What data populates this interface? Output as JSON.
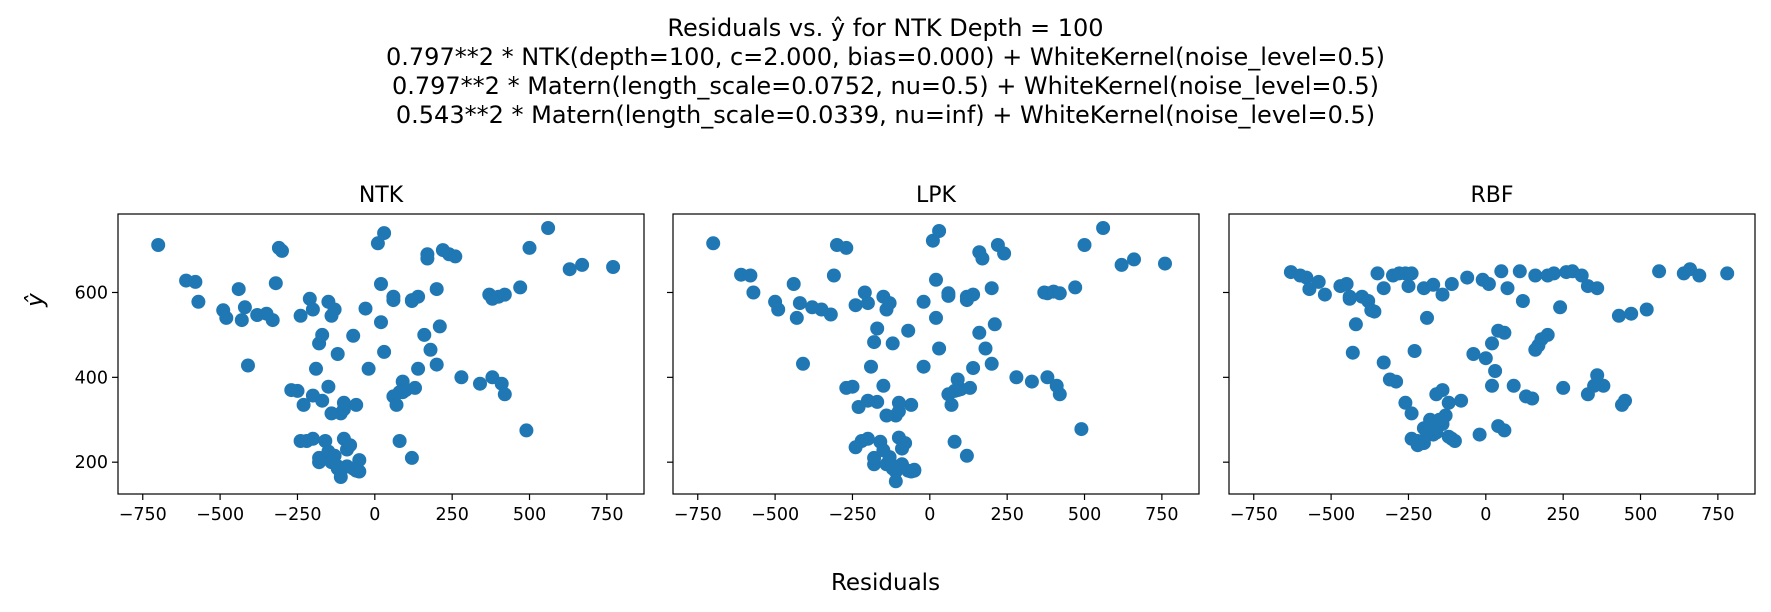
{
  "title_lines": [
    "Residuals vs. ŷ for NTK Depth = 100",
    "0.797**2 * NTK(depth=100, c=2.000, bias=0.000) + WhiteKernel(noise_level=0.5)",
    "0.797**2 * Matern(length_scale=0.0752, nu=0.5) + WhiteKernel(noise_level=0.5)",
    "0.543**2 * Matern(length_scale=0.0339, nu=inf) + WhiteKernel(noise_level=0.5)"
  ],
  "xlabel": "Residuals",
  "ylabel": "ŷ",
  "point_color": "#1f77b4",
  "chart_data": [
    {
      "type": "scatter",
      "title": "NTK",
      "xlim": [
        -830,
        870
      ],
      "ylim": [
        125,
        785
      ],
      "xticks": [
        -750,
        -500,
        -250,
        0,
        250,
        500,
        750
      ],
      "yticks": [
        200,
        400,
        600
      ],
      "x": [
        -700,
        -610,
        -580,
        -570,
        -490,
        -480,
        -440,
        -430,
        -420,
        -410,
        -380,
        -350,
        -330,
        -320,
        -310,
        -300,
        -240,
        -210,
        -200,
        -190,
        -180,
        -170,
        -150,
        -140,
        -130,
        -110,
        -100,
        10,
        30,
        60,
        220,
        240,
        260,
        170,
        200,
        120,
        60,
        20,
        -30,
        -70,
        -120,
        -150,
        -170,
        -200,
        -230,
        -250,
        -200,
        -180,
        -120,
        -110,
        -90,
        -50,
        80,
        90,
        100,
        130,
        140,
        180,
        200,
        210,
        170,
        160,
        140,
        120,
        90,
        80,
        60,
        30,
        20,
        -20,
        -60,
        -100,
        -140,
        -160,
        -180,
        -220,
        -240,
        -270,
        -150,
        -140,
        -130,
        -120,
        -110,
        -100,
        -90,
        -80,
        -70,
        -60,
        -50,
        70,
        120,
        280,
        340,
        370,
        380,
        400,
        420,
        470,
        490,
        500,
        560,
        630,
        670,
        770,
        380,
        410,
        420
      ],
      "y": [
        712,
        628,
        625,
        578,
        558,
        540,
        608,
        535,
        565,
        428,
        547,
        550,
        535,
        622,
        705,
        698,
        545,
        585,
        560,
        420,
        480,
        500,
        578,
        545,
        560,
        315,
        325,
        716,
        740,
        582,
        700,
        690,
        685,
        690,
        608,
        582,
        590,
        530,
        562,
        498,
        455,
        378,
        345,
        357,
        335,
        368,
        255,
        200,
        185,
        180,
        190,
        178,
        250,
        365,
        370,
        375,
        420,
        465,
        430,
        520,
        680,
        500,
        590,
        580,
        390,
        365,
        355,
        460,
        620,
        420,
        335,
        340,
        315,
        250,
        210,
        250,
        250,
        370,
        225,
        200,
        215,
        190,
        165,
        255,
        230,
        240,
        185,
        180,
        205,
        335,
        210,
        400,
        385,
        595,
        585,
        590,
        595,
        612,
        275,
        705,
        752,
        655,
        665,
        660,
        400,
        385,
        360
      ]
    },
    {
      "type": "scatter",
      "title": "LPK",
      "xlim": [
        -830,
        870
      ],
      "ylim": [
        125,
        785
      ],
      "xticks": [
        -750,
        -500,
        -250,
        0,
        250,
        500,
        750
      ],
      "yticks": [
        200,
        400,
        600
      ],
      "x": [
        -700,
        -610,
        -580,
        -570,
        -500,
        -490,
        -440,
        -430,
        -420,
        -410,
        -380,
        -350,
        -320,
        -310,
        -300,
        -270,
        -240,
        -210,
        -200,
        -190,
        -180,
        -170,
        -150,
        -140,
        -130,
        -110,
        -100,
        10,
        30,
        60,
        220,
        240,
        160,
        200,
        120,
        60,
        20,
        -20,
        -70,
        -120,
        -150,
        -170,
        -200,
        -230,
        -250,
        -200,
        -180,
        -120,
        -110,
        -90,
        -50,
        80,
        90,
        100,
        130,
        140,
        180,
        200,
        210,
        170,
        160,
        140,
        120,
        90,
        80,
        60,
        30,
        20,
        -20,
        -60,
        -100,
        -140,
        -160,
        -180,
        -220,
        -240,
        -270,
        -150,
        -140,
        -130,
        -120,
        -110,
        -100,
        -90,
        -80,
        -70,
        -60,
        -50,
        70,
        120,
        280,
        330,
        370,
        380,
        400,
        420,
        470,
        490,
        500,
        560,
        620,
        660,
        760,
        380,
        410,
        420
      ],
      "y": [
        716,
        642,
        640,
        600,
        578,
        560,
        620,
        540,
        575,
        432,
        565,
        560,
        548,
        640,
        712,
        705,
        570,
        600,
        575,
        425,
        483,
        515,
        590,
        560,
        575,
        310,
        320,
        722,
        745,
        592,
        712,
        692,
        695,
        610,
        590,
        598,
        540,
        578,
        510,
        480,
        380,
        342,
        345,
        330,
        378,
        255,
        195,
        185,
        178,
        195,
        180,
        248,
        370,
        372,
        375,
        422,
        468,
        432,
        525,
        680,
        505,
        595,
        582,
        395,
        368,
        360,
        468,
        630,
        425,
        335,
        340,
        310,
        248,
        210,
        250,
        235,
        375,
        228,
        195,
        212,
        192,
        155,
        258,
        232,
        245,
        180,
        178,
        182,
        335,
        215,
        400,
        390,
        600,
        598,
        602,
        598,
        612,
        278,
        712,
        752,
        665,
        678,
        668,
        400,
        380,
        360
      ]
    },
    {
      "type": "scatter",
      "title": "RBF",
      "xlim": [
        -830,
        870
      ],
      "ylim": [
        125,
        785
      ],
      "xticks": [
        -750,
        -500,
        -250,
        0,
        250,
        500,
        750
      ],
      "yticks": [
        200,
        400,
        600
      ],
      "x": [
        -630,
        -600,
        -580,
        -570,
        -540,
        -520,
        -470,
        -450,
        -440,
        -420,
        -400,
        -380,
        -370,
        -360,
        -350,
        -330,
        -300,
        -280,
        -260,
        -250,
        -240,
        -230,
        -200,
        -190,
        -170,
        -140,
        -110,
        -60,
        -10,
        10,
        50,
        70,
        110,
        120,
        160,
        200,
        220,
        260,
        280,
        310,
        330,
        360,
        380,
        430,
        470,
        520,
        560,
        640,
        660,
        690,
        780,
        240,
        200,
        180,
        170,
        160,
        130,
        90,
        60,
        40,
        20,
        0,
        -40,
        -80,
        -120,
        -140,
        -160,
        -180,
        -200,
        -220,
        -240,
        -260,
        -290,
        -310,
        -330,
        -430,
        -440,
        -100,
        -110,
        -120,
        -130,
        -140,
        -150,
        -160,
        -170,
        -180,
        -190,
        -200,
        -220,
        -240,
        40,
        30,
        20,
        60,
        150,
        250,
        330,
        350,
        360,
        440,
        450,
        -20
      ],
      "y": [
        648,
        640,
        635,
        608,
        625,
        595,
        615,
        620,
        585,
        525,
        590,
        580,
        558,
        555,
        645,
        610,
        640,
        645,
        645,
        615,
        645,
        462,
        610,
        540,
        618,
        595,
        620,
        635,
        630,
        620,
        650,
        610,
        650,
        580,
        640,
        640,
        645,
        648,
        650,
        640,
        615,
        610,
        380,
        545,
        550,
        560,
        650,
        645,
        655,
        640,
        645,
        565,
        500,
        490,
        475,
        465,
        355,
        380,
        505,
        510,
        480,
        445,
        455,
        345,
        340,
        370,
        360,
        300,
        280,
        250,
        315,
        340,
        390,
        395,
        435,
        458,
        590,
        250,
        255,
        260,
        310,
        290,
        300,
        270,
        265,
        290,
        270,
        245,
        240,
        255,
        285,
        415,
        380,
        275,
        350,
        375,
        360,
        380,
        405,
        335,
        345,
        265
      ]
    }
  ]
}
